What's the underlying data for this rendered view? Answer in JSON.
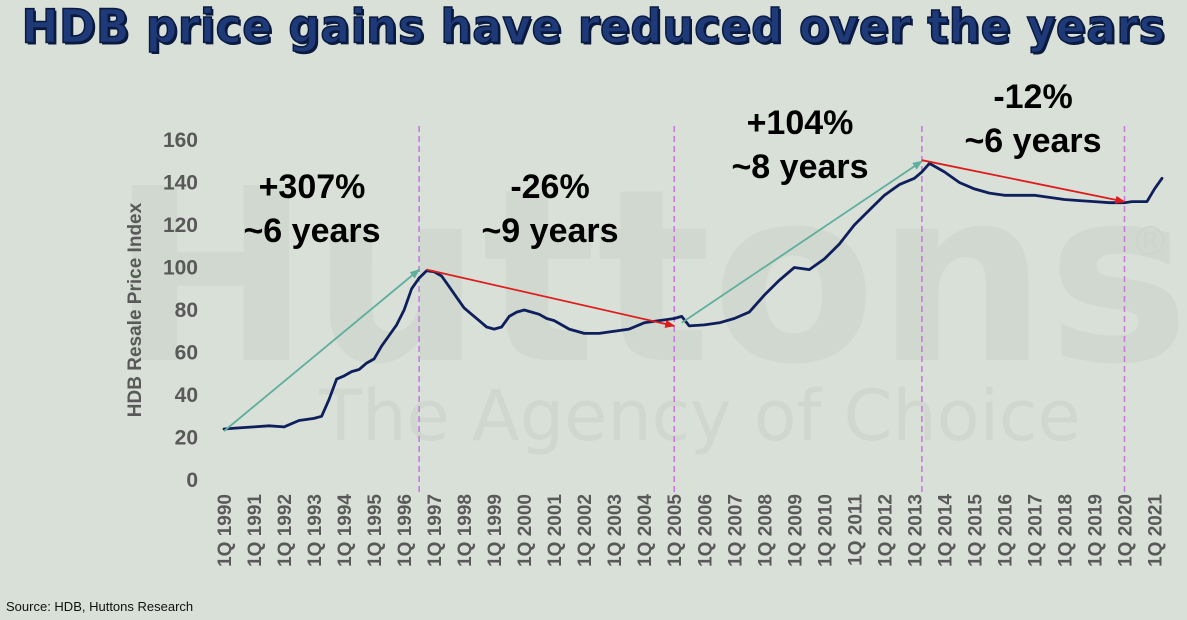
{
  "title": "HDB price gains have reduced over the years",
  "watermark": {
    "brand": "Huttons",
    "tagline": "The Agency of Choice",
    "mark": "®"
  },
  "source": "Source: HDB, Huttons Research",
  "colors": {
    "background": "#d9e0d8",
    "line": "#0f1f5c",
    "rise_arrow": "#5fae9e",
    "fall_arrow": "#e01b1b",
    "divider": "#c77be0",
    "axis_text": "#595959",
    "title": "#1f3a78"
  },
  "chart_data": {
    "type": "line",
    "title": "HDB price gains have reduced over the years",
    "xlabel": "",
    "ylabel": "HDB Resale Price Index",
    "ylim": [
      0,
      160
    ],
    "yticks": [
      0,
      20,
      40,
      60,
      80,
      100,
      120,
      140,
      160
    ],
    "xlim": [
      1990,
      2021.25
    ],
    "xticks": [
      "1Q 1990",
      "1Q 1991",
      "1Q 1992",
      "1Q 1993",
      "1Q 1994",
      "1Q 1995",
      "1Q 1996",
      "1Q 1997",
      "1Q 1998",
      "1Q 1999",
      "1Q 2000",
      "1Q 2001",
      "1Q 2002",
      "1Q 2003",
      "1Q 2004",
      "1Q 2005",
      "1Q 2006",
      "1Q 2007",
      "1Q 2008",
      "1Q 2009",
      "1Q 2010",
      "1Q 2011",
      "1Q 2012",
      "1Q 2013",
      "1Q 2014",
      "1Q 2015",
      "1Q 2016",
      "1Q 2017",
      "1Q 2018",
      "1Q 2019",
      "1Q 2020",
      "1Q 2021"
    ],
    "grid": false,
    "series": [
      {
        "x": [
          1990.0,
          1990.5,
          1991.0,
          1991.5,
          1992.0,
          1992.5,
          1993.0,
          1993.25,
          1993.5,
          1993.75,
          1994.0,
          1994.25,
          1994.5,
          1994.75,
          1995.0,
          1995.25,
          1995.5,
          1995.75,
          1996.0,
          1996.25,
          1996.5,
          1996.75,
          1997.0,
          1997.25,
          1997.5,
          1997.75,
          1998.0,
          1998.25,
          1998.5,
          1998.75,
          1999.0,
          1999.25,
          1999.5,
          1999.75,
          2000.0,
          2000.25,
          2000.5,
          2000.75,
          2001.0,
          2001.5,
          2002.0,
          2002.5,
          2003.0,
          2003.5,
          2004.0,
          2004.5,
          2005.0,
          2005.25,
          2005.5,
          2006.0,
          2006.5,
          2007.0,
          2007.5,
          2008.0,
          2008.5,
          2009.0,
          2009.5,
          2010.0,
          2010.5,
          2011.0,
          2011.5,
          2012.0,
          2012.5,
          2013.0,
          2013.25,
          2013.5,
          2014.0,
          2014.5,
          2015.0,
          2015.5,
          2016.0,
          2016.5,
          2017.0,
          2017.5,
          2018.0,
          2018.5,
          2019.0,
          2019.5,
          2020.0,
          2020.25,
          2020.5,
          2020.75,
          2021.0,
          2021.25
        ],
        "y": [
          24,
          24.5,
          25,
          25.5,
          25,
          28,
          29,
          30,
          38,
          47.5,
          49,
          51,
          52,
          55,
          57,
          63,
          68,
          73,
          80,
          90,
          95,
          98.5,
          98,
          96,
          91,
          86,
          81,
          78,
          75,
          72,
          71,
          72,
          77,
          79,
          80,
          79,
          78,
          76,
          75,
          71,
          69,
          69,
          70,
          71,
          74,
          75,
          76,
          77,
          72.5,
          73,
          74,
          76,
          79,
          87,
          94,
          100,
          99,
          104,
          111,
          120,
          127,
          134,
          139,
          142,
          145,
          149,
          145,
          140,
          137,
          135,
          134,
          134,
          134,
          133,
          132,
          131.5,
          131,
          130.5,
          130.5,
          131,
          131,
          131,
          137,
          142
        ]
      }
    ],
    "annotations": [
      {
        "text": "+307%",
        "sub": "~6 years"
      },
      {
        "text": "-26%",
        "sub": "~9 years"
      },
      {
        "text": "+104%",
        "sub": "~8 years"
      },
      {
        "text": "-12%",
        "sub": "~6 years"
      }
    ],
    "arrows": [
      {
        "kind": "rise",
        "from": [
          1990.0,
          23
        ],
        "to": [
          1996.5,
          99
        ]
      },
      {
        "kind": "fall",
        "from": [
          1996.75,
          99
        ],
        "to": [
          2005.0,
          72.5
        ]
      },
      {
        "kind": "rise",
        "from": [
          2005.25,
          74
        ],
        "to": [
          2013.25,
          150
        ]
      },
      {
        "kind": "fall",
        "from": [
          2013.25,
          150.5
        ],
        "to": [
          2020.0,
          131
        ]
      }
    ],
    "dividers": [
      1996.5,
      2005.0,
      2013.25,
      2020.0
    ]
  }
}
